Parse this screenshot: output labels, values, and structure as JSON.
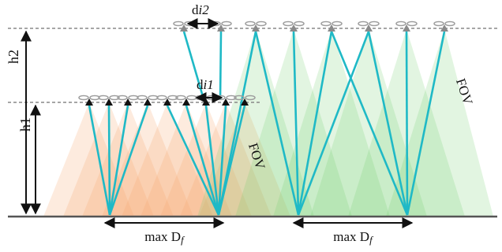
{
  "labels": {
    "h1": "h1",
    "h2": "h2",
    "di1": "d",
    "di1_sub": "i1",
    "di2": "d",
    "di2_sub": "i2",
    "fov_left": "FOV",
    "fov_right": "FOV",
    "maxdf_left": "max D",
    "maxdf_left_sub": "f",
    "maxdf_right": "max D",
    "maxdf_right_sub": "f"
  },
  "colors": {
    "beam": "#1fb9c6",
    "orange_fov": "#f6a468",
    "green_fov": "#6fcc6a",
    "drone": "#9e9e9e",
    "dashed": "#888888",
    "ground": "#555555"
  }
}
